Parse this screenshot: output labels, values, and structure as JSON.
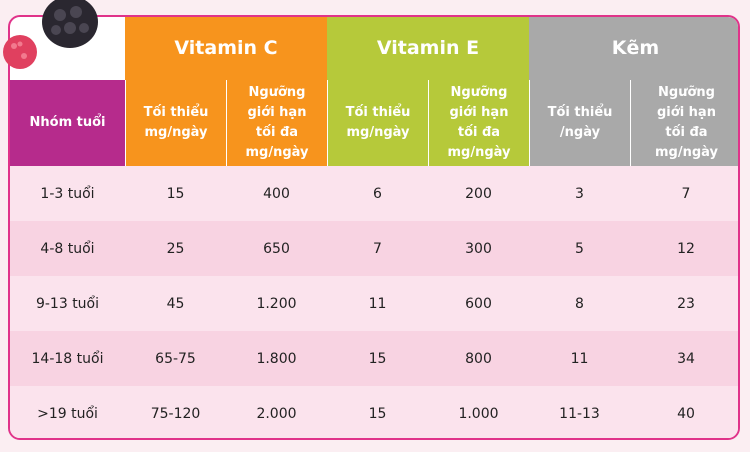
{
  "table": {
    "groups": [
      "Vitamin C",
      "Vitamin E",
      "Kẽm"
    ],
    "header": [
      "Nhóm tuổi",
      "Tối thiểu\nmg/ngày",
      "Ngưỡng\ngiới hạn\ntối đa\nmg/ngày",
      "Tối thiểu\nmg/ngày",
      "Ngưỡng\ngiới hạn\ntối đa\nmg/ngày",
      "Tối thiểu\n/ngày",
      "Ngưỡng\ngiới hạn\ntối đa\nmg/ngày"
    ],
    "rows": [
      [
        "1-3 tuổi",
        "15",
        "400",
        "6",
        "200",
        "3",
        "7"
      ],
      [
        "4-8 tuổi",
        "25",
        "650",
        "7",
        "300",
        "5",
        "12"
      ],
      [
        "9-13 tuổi",
        "45",
        "1.200",
        "11",
        "600",
        "8",
        "23"
      ],
      [
        "14-18 tuổi",
        "65-75",
        "1.800",
        "15",
        "800",
        "11",
        "34"
      ],
      [
        ">19 tuổi",
        "75-120",
        "2.000",
        "15",
        "1.000",
        "11-13",
        "40"
      ]
    ]
  }
}
